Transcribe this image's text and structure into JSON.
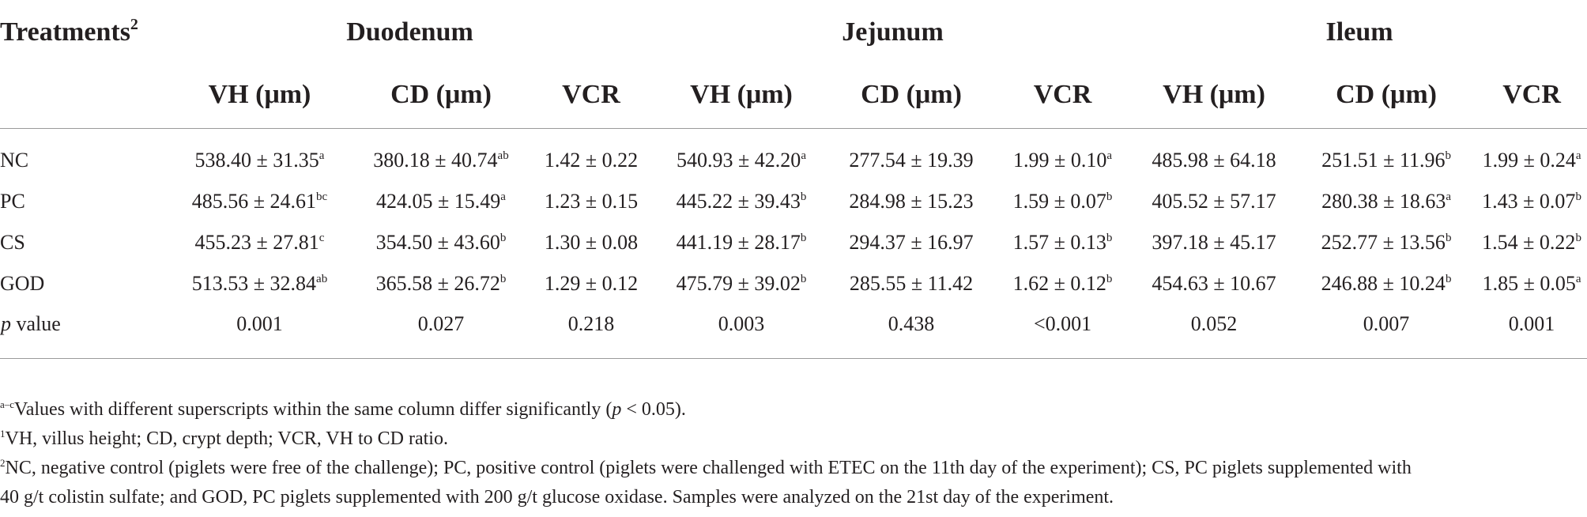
{
  "table": {
    "stub_header": "Treatments",
    "stub_header_sup": "2",
    "groups": [
      "Duodenum",
      "Jejunum",
      "Ileum"
    ],
    "subheaders": [
      "VH (μm)",
      "CD (μm)",
      "VCR",
      "VH (μm)",
      "CD (μm)",
      "VCR",
      "VH (μm)",
      "CD (μm)",
      "VCR"
    ],
    "rows": [
      {
        "label": "NC",
        "cells": [
          {
            "v": "538.40 ± 31.35",
            "s": "a"
          },
          {
            "v": "380.18 ± 40.74",
            "s": "ab"
          },
          {
            "v": "1.42 ± 0.22",
            "s": ""
          },
          {
            "v": "540.93 ± 42.20",
            "s": "a"
          },
          {
            "v": "277.54 ± 19.39",
            "s": ""
          },
          {
            "v": "1.99 ± 0.10",
            "s": "a"
          },
          {
            "v": "485.98 ± 64.18",
            "s": ""
          },
          {
            "v": "251.51 ± 11.96",
            "s": "b"
          },
          {
            "v": "1.99 ± 0.24",
            "s": "a"
          }
        ]
      },
      {
        "label": "PC",
        "cells": [
          {
            "v": "485.56 ± 24.61",
            "s": "bc"
          },
          {
            "v": "424.05 ± 15.49",
            "s": "a"
          },
          {
            "v": "1.23 ± 0.15",
            "s": ""
          },
          {
            "v": "445.22 ± 39.43",
            "s": "b"
          },
          {
            "v": "284.98 ± 15.23",
            "s": ""
          },
          {
            "v": "1.59 ± 0.07",
            "s": "b"
          },
          {
            "v": "405.52 ± 57.17",
            "s": ""
          },
          {
            "v": "280.38 ± 18.63",
            "s": "a"
          },
          {
            "v": "1.43 ± 0.07",
            "s": "b"
          }
        ]
      },
      {
        "label": "CS",
        "cells": [
          {
            "v": "455.23 ± 27.81",
            "s": "c"
          },
          {
            "v": "354.50 ± 43.60",
            "s": "b"
          },
          {
            "v": "1.30 ± 0.08",
            "s": ""
          },
          {
            "v": "441.19 ± 28.17",
            "s": "b"
          },
          {
            "v": "294.37 ± 16.97",
            "s": ""
          },
          {
            "v": "1.57 ± 0.13",
            "s": "b"
          },
          {
            "v": "397.18 ± 45.17",
            "s": ""
          },
          {
            "v": "252.77 ± 13.56",
            "s": "b"
          },
          {
            "v": "1.54 ± 0.22",
            "s": "b"
          }
        ]
      },
      {
        "label": "GOD",
        "cells": [
          {
            "v": "513.53 ± 32.84",
            "s": "ab"
          },
          {
            "v": "365.58 ± 26.72",
            "s": "b"
          },
          {
            "v": "1.29 ± 0.12",
            "s": ""
          },
          {
            "v": "475.79 ± 39.02",
            "s": "b"
          },
          {
            "v": "285.55 ± 11.42",
            "s": ""
          },
          {
            "v": "1.62 ± 0.12",
            "s": "b"
          },
          {
            "v": "454.63 ± 10.67",
            "s": ""
          },
          {
            "v": "246.88 ± 10.24",
            "s": "b"
          },
          {
            "v": "1.85 ± 0.05",
            "s": "a"
          }
        ]
      }
    ],
    "p_row": {
      "label_italic": "p",
      "label_rest": " value",
      "values": [
        "0.001",
        "0.027",
        "0.218",
        "0.003",
        "0.438",
        "<0.001",
        "0.052",
        "0.007",
        "0.001"
      ]
    }
  },
  "footnotes": {
    "fn1_sup": "a–c",
    "fn1_text": "Values with different superscripts within the same column differ significantly (",
    "fn1_italic": "p",
    "fn1_end": " < 0.05).",
    "fn2_sup": "1",
    "fn2_text": "VH, villus height; CD, crypt depth; VCR, VH to CD ratio.",
    "fn3_sup": "2",
    "fn3_line1": "NC, negative control (piglets were free of the challenge); PC, positive control (piglets were challenged with ETEC on the 11th day of the experiment); CS, PC piglets supplemented with",
    "fn3_line2": "40 g/t colistin sulfate; and GOD, PC piglets supplemented with 200 g/t glucose oxidase. Samples were analyzed on the 21st day of the experiment."
  }
}
